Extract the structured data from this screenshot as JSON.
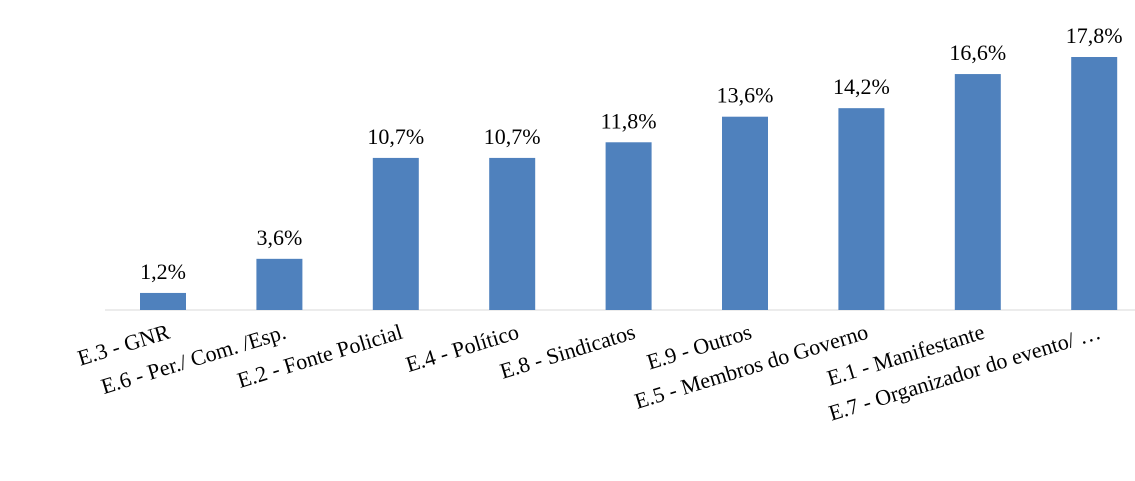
{
  "chart_data": {
    "type": "bar",
    "categories": [
      "E.3 - GNR",
      "E.6 - Per./ Com. /Esp.",
      "E.2 - Fonte Policial",
      "E.4 - Político",
      "E.8 - Sindicatos",
      "E.9 - Outros",
      "E.5 - Membros do Governo",
      "E.1 - Manifestante",
      "E.7 - Organizador do evento/ …"
    ],
    "values": [
      1.2,
      3.6,
      10.7,
      10.7,
      11.8,
      13.6,
      14.2,
      16.6,
      17.8
    ],
    "value_labels": [
      "1,2%",
      "3,6%",
      "10,7%",
      "10,7%",
      "11,8%",
      "13,6%",
      "14,2%",
      "16,6%",
      "17,8%"
    ],
    "color": "#4f81bd"
  }
}
